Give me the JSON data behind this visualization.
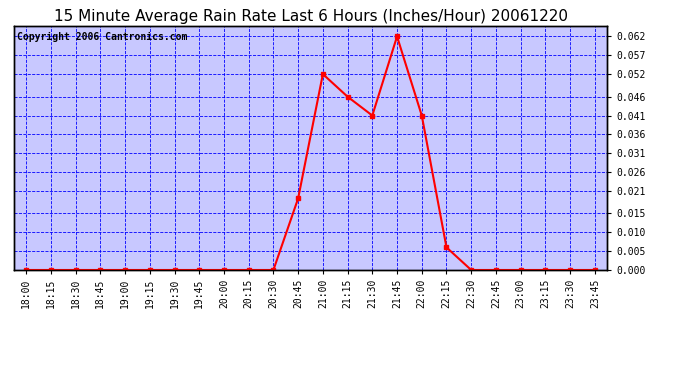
{
  "title": "15 Minute Average Rain Rate Last 6 Hours (Inches/Hour) 20061220",
  "copyright": "Copyright 2006 Cantronics.com",
  "plot_bg_color": "#c8c8ff",
  "line_color": "red",
  "marker_color": "red",
  "grid_color": "blue",
  "x_labels": [
    "18:00",
    "18:15",
    "18:30",
    "18:45",
    "19:00",
    "19:15",
    "19:30",
    "19:45",
    "20:00",
    "20:15",
    "20:30",
    "20:45",
    "21:00",
    "21:15",
    "21:30",
    "21:45",
    "22:00",
    "22:15",
    "22:30",
    "22:45",
    "23:00",
    "23:15",
    "23:30",
    "23:45"
  ],
  "y_values": [
    0.0,
    0.0,
    0.0,
    0.0,
    0.0,
    0.0,
    0.0,
    0.0,
    0.0,
    0.0,
    0.0,
    0.019,
    0.052,
    0.046,
    0.041,
    0.062,
    0.041,
    0.006,
    0.0,
    0.0,
    0.0,
    0.0,
    0.0,
    0.0
  ],
  "ylim": [
    0.0,
    0.0647
  ],
  "yticks": [
    0.0,
    0.005,
    0.01,
    0.015,
    0.021,
    0.026,
    0.031,
    0.036,
    0.041,
    0.046,
    0.052,
    0.057,
    0.062
  ],
  "title_fontsize": 11,
  "copyright_fontsize": 7,
  "tick_fontsize": 7,
  "figure_bg": "#ffffff"
}
